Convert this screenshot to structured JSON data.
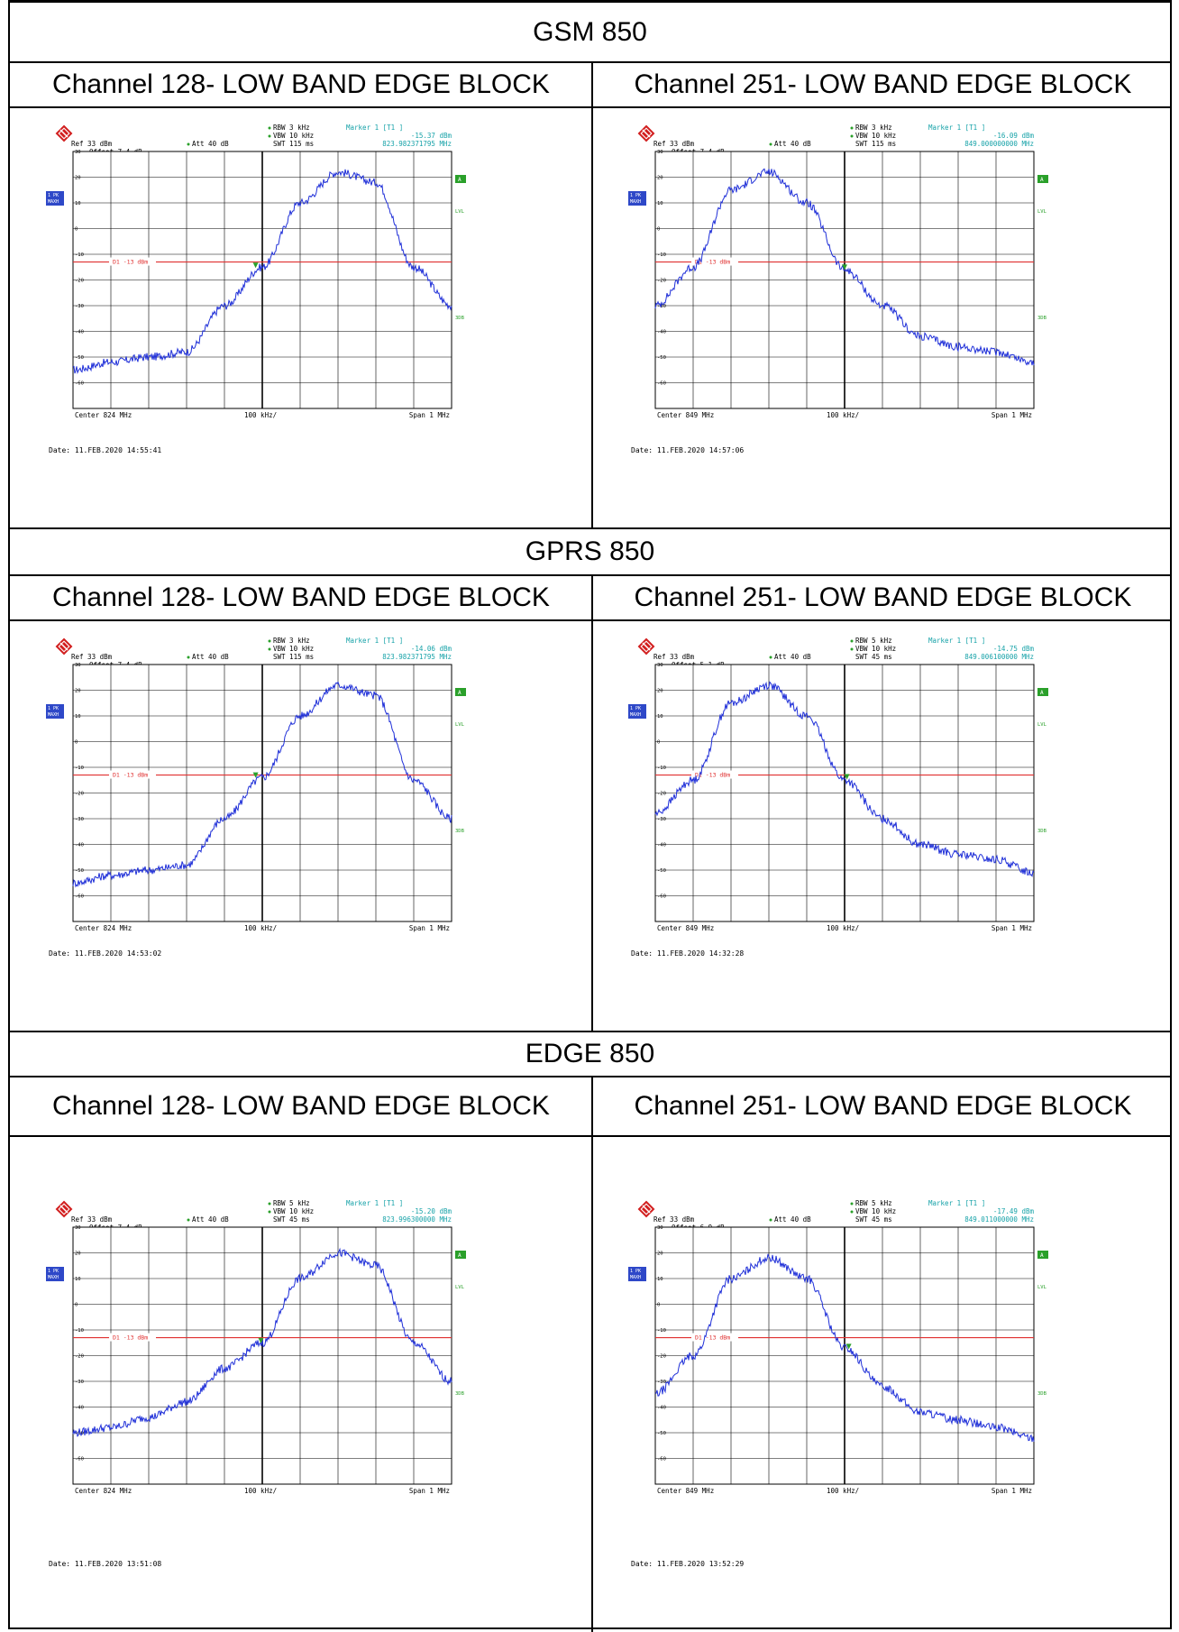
{
  "sections": [
    {
      "title": "GSM 850",
      "columns": [
        {
          "heading": "Channel 128- LOW BAND EDGE BLOCK",
          "plot": {
            "rbw": "RBW 3 kHz",
            "vbw": "VBW 10 kHz",
            "swt": "SWT 115 ms",
            "marker_title": "Marker 1 [T1 ]",
            "marker_level": "-15.37 dBm",
            "marker_freq": "823.982371795 MHz",
            "ref": "Ref  33 dBm",
            "att": "Att  40 dB",
            "offset": "Offset  7.4 dB",
            "line_label": "D1 -13 dBm",
            "center": "Center 824 MHz",
            "div": "100 kHz/",
            "span": "Span 1 MHz",
            "date": "Date: 11.FEB.2020  14:55:41",
            "side_a": "A",
            "side_lvl": "LVL",
            "side_3db": "3DB",
            "trace_box1": "1 PK",
            "trace_box2": "MAXH",
            "shape": "low"
          }
        },
        {
          "heading": "Channel 251- LOW BAND EDGE BLOCK",
          "plot": {
            "rbw": "RBW 3 kHz",
            "vbw": "VBW 10 kHz",
            "swt": "SWT 115 ms",
            "marker_title": "Marker 1 [T1 ]",
            "marker_level": "-16.09 dBm",
            "marker_freq": "849.000000000 MHz",
            "ref": "Ref  33 dBm",
            "att": "Att  40 dB",
            "offset": "Offset  7.4 dB",
            "line_label": "D1 -13 dBm",
            "center": "Center 849 MHz",
            "div": "100 kHz/",
            "span": "Span 1 MHz",
            "date": "Date: 11.FEB.2020  14:57:06",
            "side_a": "A",
            "side_lvl": "LVL",
            "side_3db": "3DB",
            "trace_box1": "1 PK",
            "trace_box2": "MAXH",
            "shape": "high"
          }
        }
      ]
    },
    {
      "title": "GPRS 850",
      "columns": [
        {
          "heading": "Channel 128- LOW BAND EDGE BLOCK",
          "plot": {
            "rbw": "RBW 3 kHz",
            "vbw": "VBW 10 kHz",
            "swt": "SWT 115 ms",
            "marker_title": "Marker 1 [T1 ]",
            "marker_level": "-14.06 dBm",
            "marker_freq": "823.982371795 MHz",
            "ref": "Ref  33 dBm",
            "att": "Att  40 dB",
            "offset": "Offset  7.4 dB",
            "line_label": "D1 -13 dBm",
            "center": "Center 824 MHz",
            "div": "100 kHz/",
            "span": "Span 1 MHz",
            "date": "Date: 11.FEB.2020  14:53:02",
            "side_a": "A",
            "side_lvl": "LVL",
            "side_3db": "3DB",
            "trace_box1": "1 PK",
            "trace_box2": "MAXH",
            "shape": "low"
          }
        },
        {
          "heading": "Channel 251- LOW BAND EDGE BLOCK",
          "plot": {
            "rbw": "RBW 5 kHz",
            "vbw": "VBW 10 kHz",
            "swt": "SWT 45 ms",
            "marker_title": "Marker 1 [T1 ]",
            "marker_level": "-14.75 dBm",
            "marker_freq": "849.006100000 MHz",
            "ref": "Ref  33 dBm",
            "att": "Att  40 dB",
            "offset": "Offset  5.1 dB",
            "line_label": "D1 -13 dBm",
            "center": "Center 849 MHz",
            "div": "100 kHz/",
            "span": "Span 1 MHz",
            "date": "Date: 11.FEB.2020  14:32:28",
            "side_a": "A",
            "side_lvl": "LVL",
            "side_3db": "3DB",
            "trace_box1": "1 PK",
            "trace_box2": "MAXH",
            "shape": "high"
          }
        }
      ]
    },
    {
      "title": "EDGE 850",
      "columns": [
        {
          "heading": "Channel 128- LOW BAND EDGE BLOCK",
          "plot": {
            "rbw": "RBW 5 kHz",
            "vbw": "VBW 10 kHz",
            "swt": "SWT 45 ms",
            "marker_title": "Marker 1 [T1 ]",
            "marker_level": "-15.20 dBm",
            "marker_freq": "823.996300000 MHz",
            "ref": "Ref  33 dBm",
            "att": "Att  40 dB",
            "offset": "Offset  7.4 dB",
            "line_label": "D1 -13 dBm",
            "center": "Center 824 MHz",
            "div": "100 kHz/",
            "span": "Span 1 MHz",
            "date": "Date: 11.FEB.2020  13:51:08",
            "side_a": "A",
            "side_lvl": "LVL",
            "side_3db": "3DB",
            "trace_box1": "1 PK",
            "trace_box2": "MAXH",
            "shape": "low"
          }
        },
        {
          "heading": "Channel 251- LOW BAND EDGE BLOCK",
          "plot": {
            "rbw": "RBW 5 kHz",
            "vbw": "VBW 10 kHz",
            "swt": "SWT 45 ms",
            "marker_title": "Marker 1 [T1 ]",
            "marker_level": "-17.49 dBm",
            "marker_freq": "849.011000000 MHz",
            "ref": "Ref  33 dBm",
            "att": "Att  40 dB",
            "offset": "Offset  6.9 dB",
            "line_label": "D1 -13 dBm",
            "center": "Center 849 MHz",
            "div": "100 kHz/",
            "span": "Span 1 MHz",
            "date": "Date: 11.FEB.2020  13:52:29",
            "side_a": "A",
            "side_lvl": "LVL",
            "side_3db": "3DB",
            "trace_box1": "1 PK",
            "trace_box2": "MAXH",
            "shape": "high"
          }
        }
      ]
    }
  ],
  "chart_data": [
    {
      "type": "line",
      "title": "",
      "xlabel": "",
      "ylabel": "",
      "x_range_mhz": [
        823.5,
        824.5
      ],
      "ylim": [
        -70,
        30
      ],
      "y_ticks": [
        30,
        20,
        10,
        0,
        -10,
        -20,
        -30,
        -40,
        -50,
        -60
      ],
      "limit_line_dbm": -13,
      "marker": {
        "x": 823.982371795,
        "y": -15.37
      },
      "x": [
        823.5,
        823.6,
        823.7,
        823.8,
        823.9,
        824.0,
        824.1,
        824.2,
        824.3,
        824.4,
        824.5
      ],
      "values": [
        -55,
        -52,
        -50,
        -48,
        -30,
        -15,
        10,
        22,
        18,
        -15,
        -30
      ]
    },
    {
      "type": "line",
      "title": "",
      "xlabel": "",
      "ylabel": "",
      "x_range_mhz": [
        848.5,
        849.5
      ],
      "ylim": [
        -70,
        30
      ],
      "y_ticks": [
        30,
        20,
        10,
        0,
        -10,
        -20,
        -30,
        -40,
        -50,
        -60
      ],
      "limit_line_dbm": -13,
      "marker": {
        "x": 849.0,
        "y": -16.09
      },
      "x": [
        848.5,
        848.6,
        848.7,
        848.8,
        848.9,
        849.0,
        849.1,
        849.2,
        849.3,
        849.4,
        849.5
      ],
      "values": [
        -30,
        -15,
        15,
        22,
        10,
        -16,
        -30,
        -42,
        -46,
        -48,
        -52
      ]
    },
    {
      "type": "line",
      "title": "",
      "xlabel": "",
      "ylabel": "",
      "x_range_mhz": [
        823.5,
        824.5
      ],
      "ylim": [
        -70,
        30
      ],
      "y_ticks": [
        30,
        20,
        10,
        0,
        -10,
        -20,
        -30,
        -40,
        -50,
        -60
      ],
      "limit_line_dbm": -13,
      "marker": {
        "x": 823.982371795,
        "y": -14.06
      },
      "x": [
        823.5,
        823.6,
        823.7,
        823.8,
        823.9,
        824.0,
        824.1,
        824.2,
        824.3,
        824.4,
        824.5
      ],
      "values": [
        -55,
        -52,
        -50,
        -48,
        -30,
        -14,
        10,
        22,
        18,
        -15,
        -30
      ]
    },
    {
      "type": "line",
      "title": "",
      "xlabel": "",
      "ylabel": "",
      "x_range_mhz": [
        848.5,
        849.5
      ],
      "ylim": [
        -70,
        30
      ],
      "y_ticks": [
        30,
        20,
        10,
        0,
        -10,
        -20,
        -30,
        -40,
        -50,
        -60
      ],
      "limit_line_dbm": -13,
      "marker": {
        "x": 849.0061,
        "y": -14.75
      },
      "x": [
        848.5,
        848.6,
        848.7,
        848.8,
        848.9,
        849.0,
        849.1,
        849.2,
        849.3,
        849.4,
        849.5
      ],
      "values": [
        -28,
        -15,
        15,
        22,
        10,
        -15,
        -30,
        -40,
        -44,
        -46,
        -51
      ]
    },
    {
      "type": "line",
      "title": "",
      "xlabel": "",
      "ylabel": "",
      "x_range_mhz": [
        823.5,
        824.5
      ],
      "ylim": [
        -70,
        30
      ],
      "y_ticks": [
        30,
        20,
        10,
        0,
        -10,
        -20,
        -30,
        -40,
        -50,
        -60
      ],
      "limit_line_dbm": -13,
      "marker": {
        "x": 823.9963,
        "y": -15.2
      },
      "x": [
        823.5,
        823.6,
        823.7,
        823.8,
        823.9,
        824.0,
        824.1,
        824.2,
        824.3,
        824.4,
        824.5
      ],
      "values": [
        -50,
        -48,
        -44,
        -38,
        -25,
        -15,
        10,
        20,
        15,
        -15,
        -30
      ]
    },
    {
      "type": "line",
      "title": "",
      "xlabel": "",
      "ylabel": "",
      "x_range_mhz": [
        848.5,
        849.5
      ],
      "ylim": [
        -70,
        30
      ],
      "y_ticks": [
        30,
        20,
        10,
        0,
        -10,
        -20,
        -30,
        -40,
        -50,
        -60
      ],
      "limit_line_dbm": -13,
      "marker": {
        "x": 849.011,
        "y": -17.49
      },
      "x": [
        848.5,
        848.6,
        848.7,
        848.8,
        848.9,
        849.0,
        849.1,
        849.2,
        849.3,
        849.4,
        849.5
      ],
      "values": [
        -35,
        -20,
        10,
        18,
        10,
        -17,
        -32,
        -42,
        -45,
        -48,
        -52
      ]
    }
  ]
}
